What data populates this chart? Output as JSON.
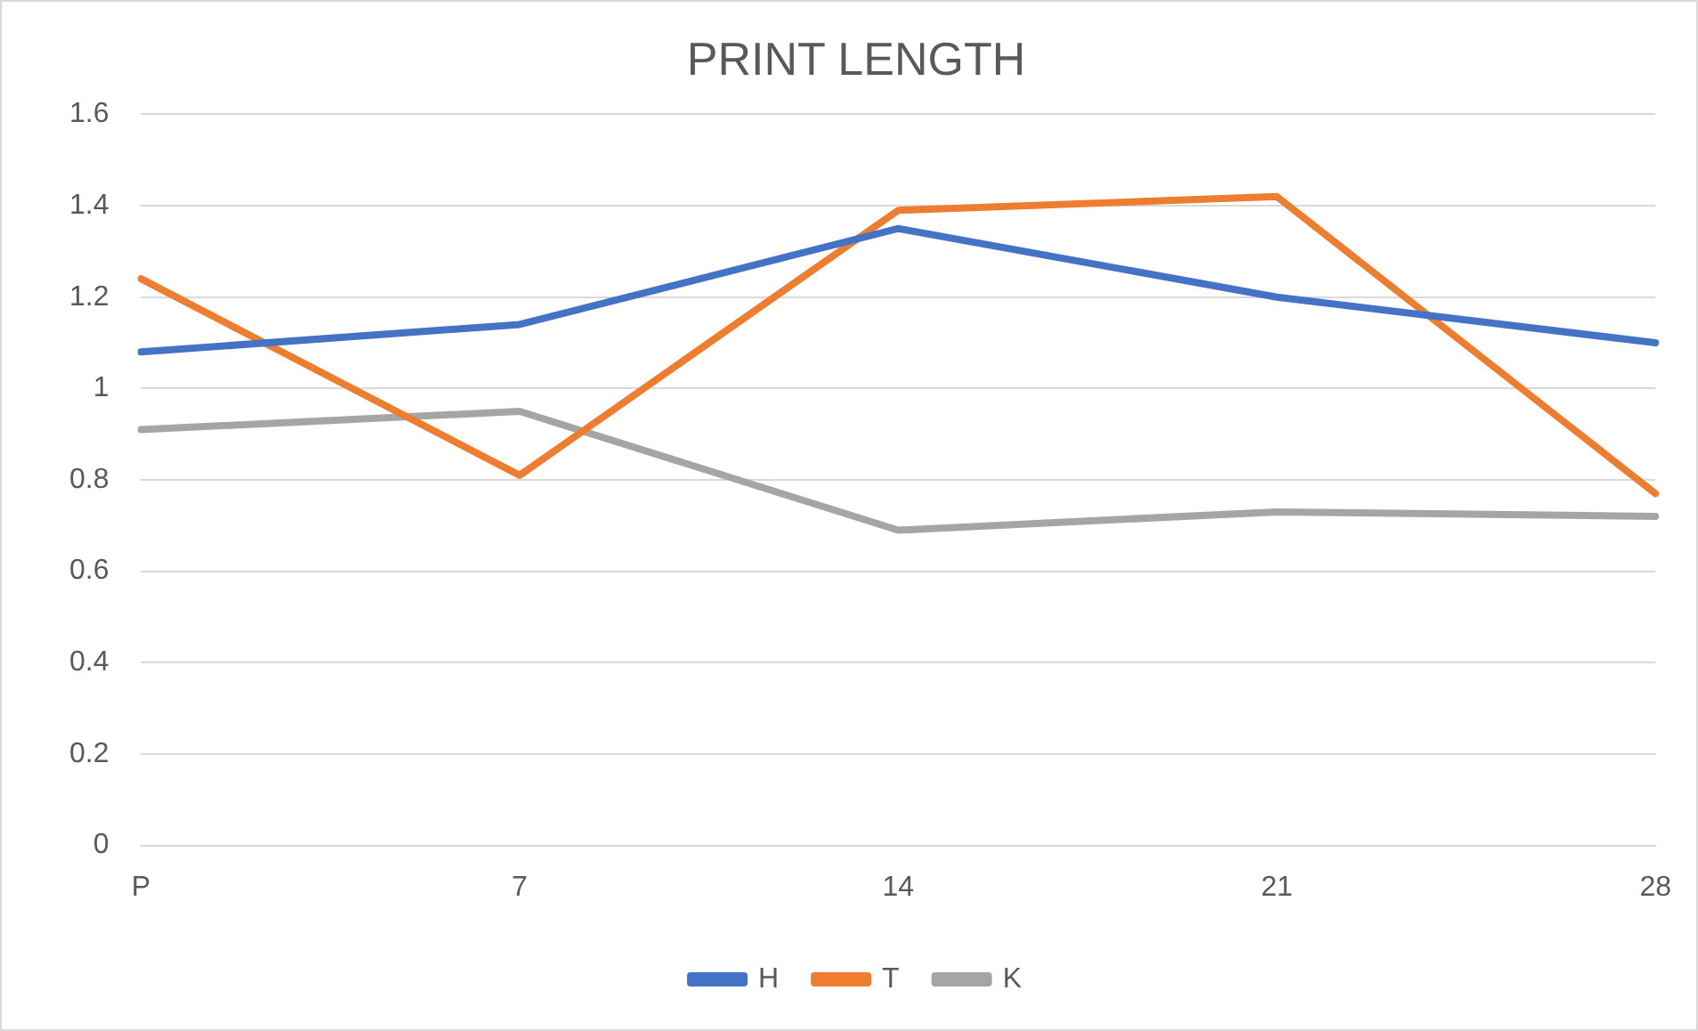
{
  "chart_data": {
    "type": "line",
    "title": "PRINT LENGTH",
    "categories": [
      "P",
      "7",
      "14",
      "21",
      "28"
    ],
    "series": [
      {
        "name": "H",
        "color": "#4472c4",
        "values": [
          1.08,
          1.14,
          1.35,
          1.2,
          1.1
        ]
      },
      {
        "name": "T",
        "color": "#ed7d31",
        "values": [
          1.24,
          0.81,
          1.39,
          1.42,
          0.77
        ]
      },
      {
        "name": "K",
        "color": "#a5a5a5",
        "values": [
          0.91,
          0.95,
          0.69,
          0.73,
          0.72
        ]
      }
    ],
    "ylim": [
      0,
      1.6
    ],
    "yticks": [
      0,
      0.2,
      0.4,
      0.6,
      0.8,
      1,
      1.2,
      1.4,
      1.6
    ],
    "grid": "y",
    "legend": "bottom",
    "marker": "none",
    "line_style": "solid"
  }
}
